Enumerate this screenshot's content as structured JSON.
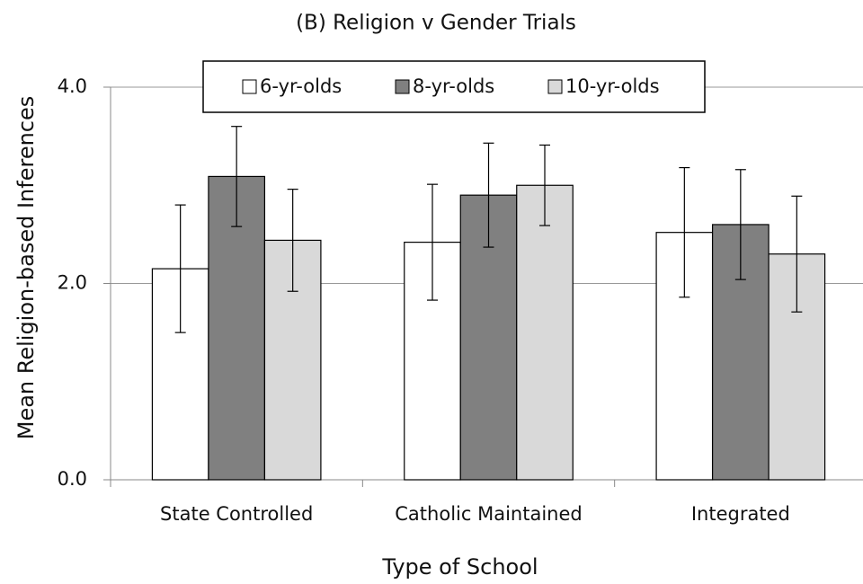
{
  "chart_data": {
    "type": "bar",
    "title": "(B) Religion v Gender Trials",
    "xlabel": "Type of School",
    "ylabel": "Mean Religion-based Inferences",
    "categories": [
      "State Controlled",
      "Catholic Maintained",
      "Integrated"
    ],
    "series": [
      {
        "name": "6-yr-olds",
        "color": "#ffffff",
        "values": [
          2.15,
          2.42,
          2.52
        ],
        "errors": [
          0.65,
          0.59,
          0.66
        ]
      },
      {
        "name": "8-yr-olds",
        "color": "#808080",
        "values": [
          3.09,
          2.9,
          2.6
        ],
        "errors": [
          0.51,
          0.53,
          0.56
        ]
      },
      {
        "name": "10-yr-olds",
        "color": "#d9d9d9",
        "values": [
          2.44,
          3.0,
          2.3
        ],
        "errors": [
          0.52,
          0.41,
          0.59
        ]
      }
    ],
    "ylim": [
      0,
      4.0
    ],
    "yticks": [
      {
        "value": 0,
        "label": "0.0"
      },
      {
        "value": 2,
        "label": "2.0"
      },
      {
        "value": 4,
        "label": "4.0"
      }
    ],
    "grid": true,
    "legend": "top"
  }
}
